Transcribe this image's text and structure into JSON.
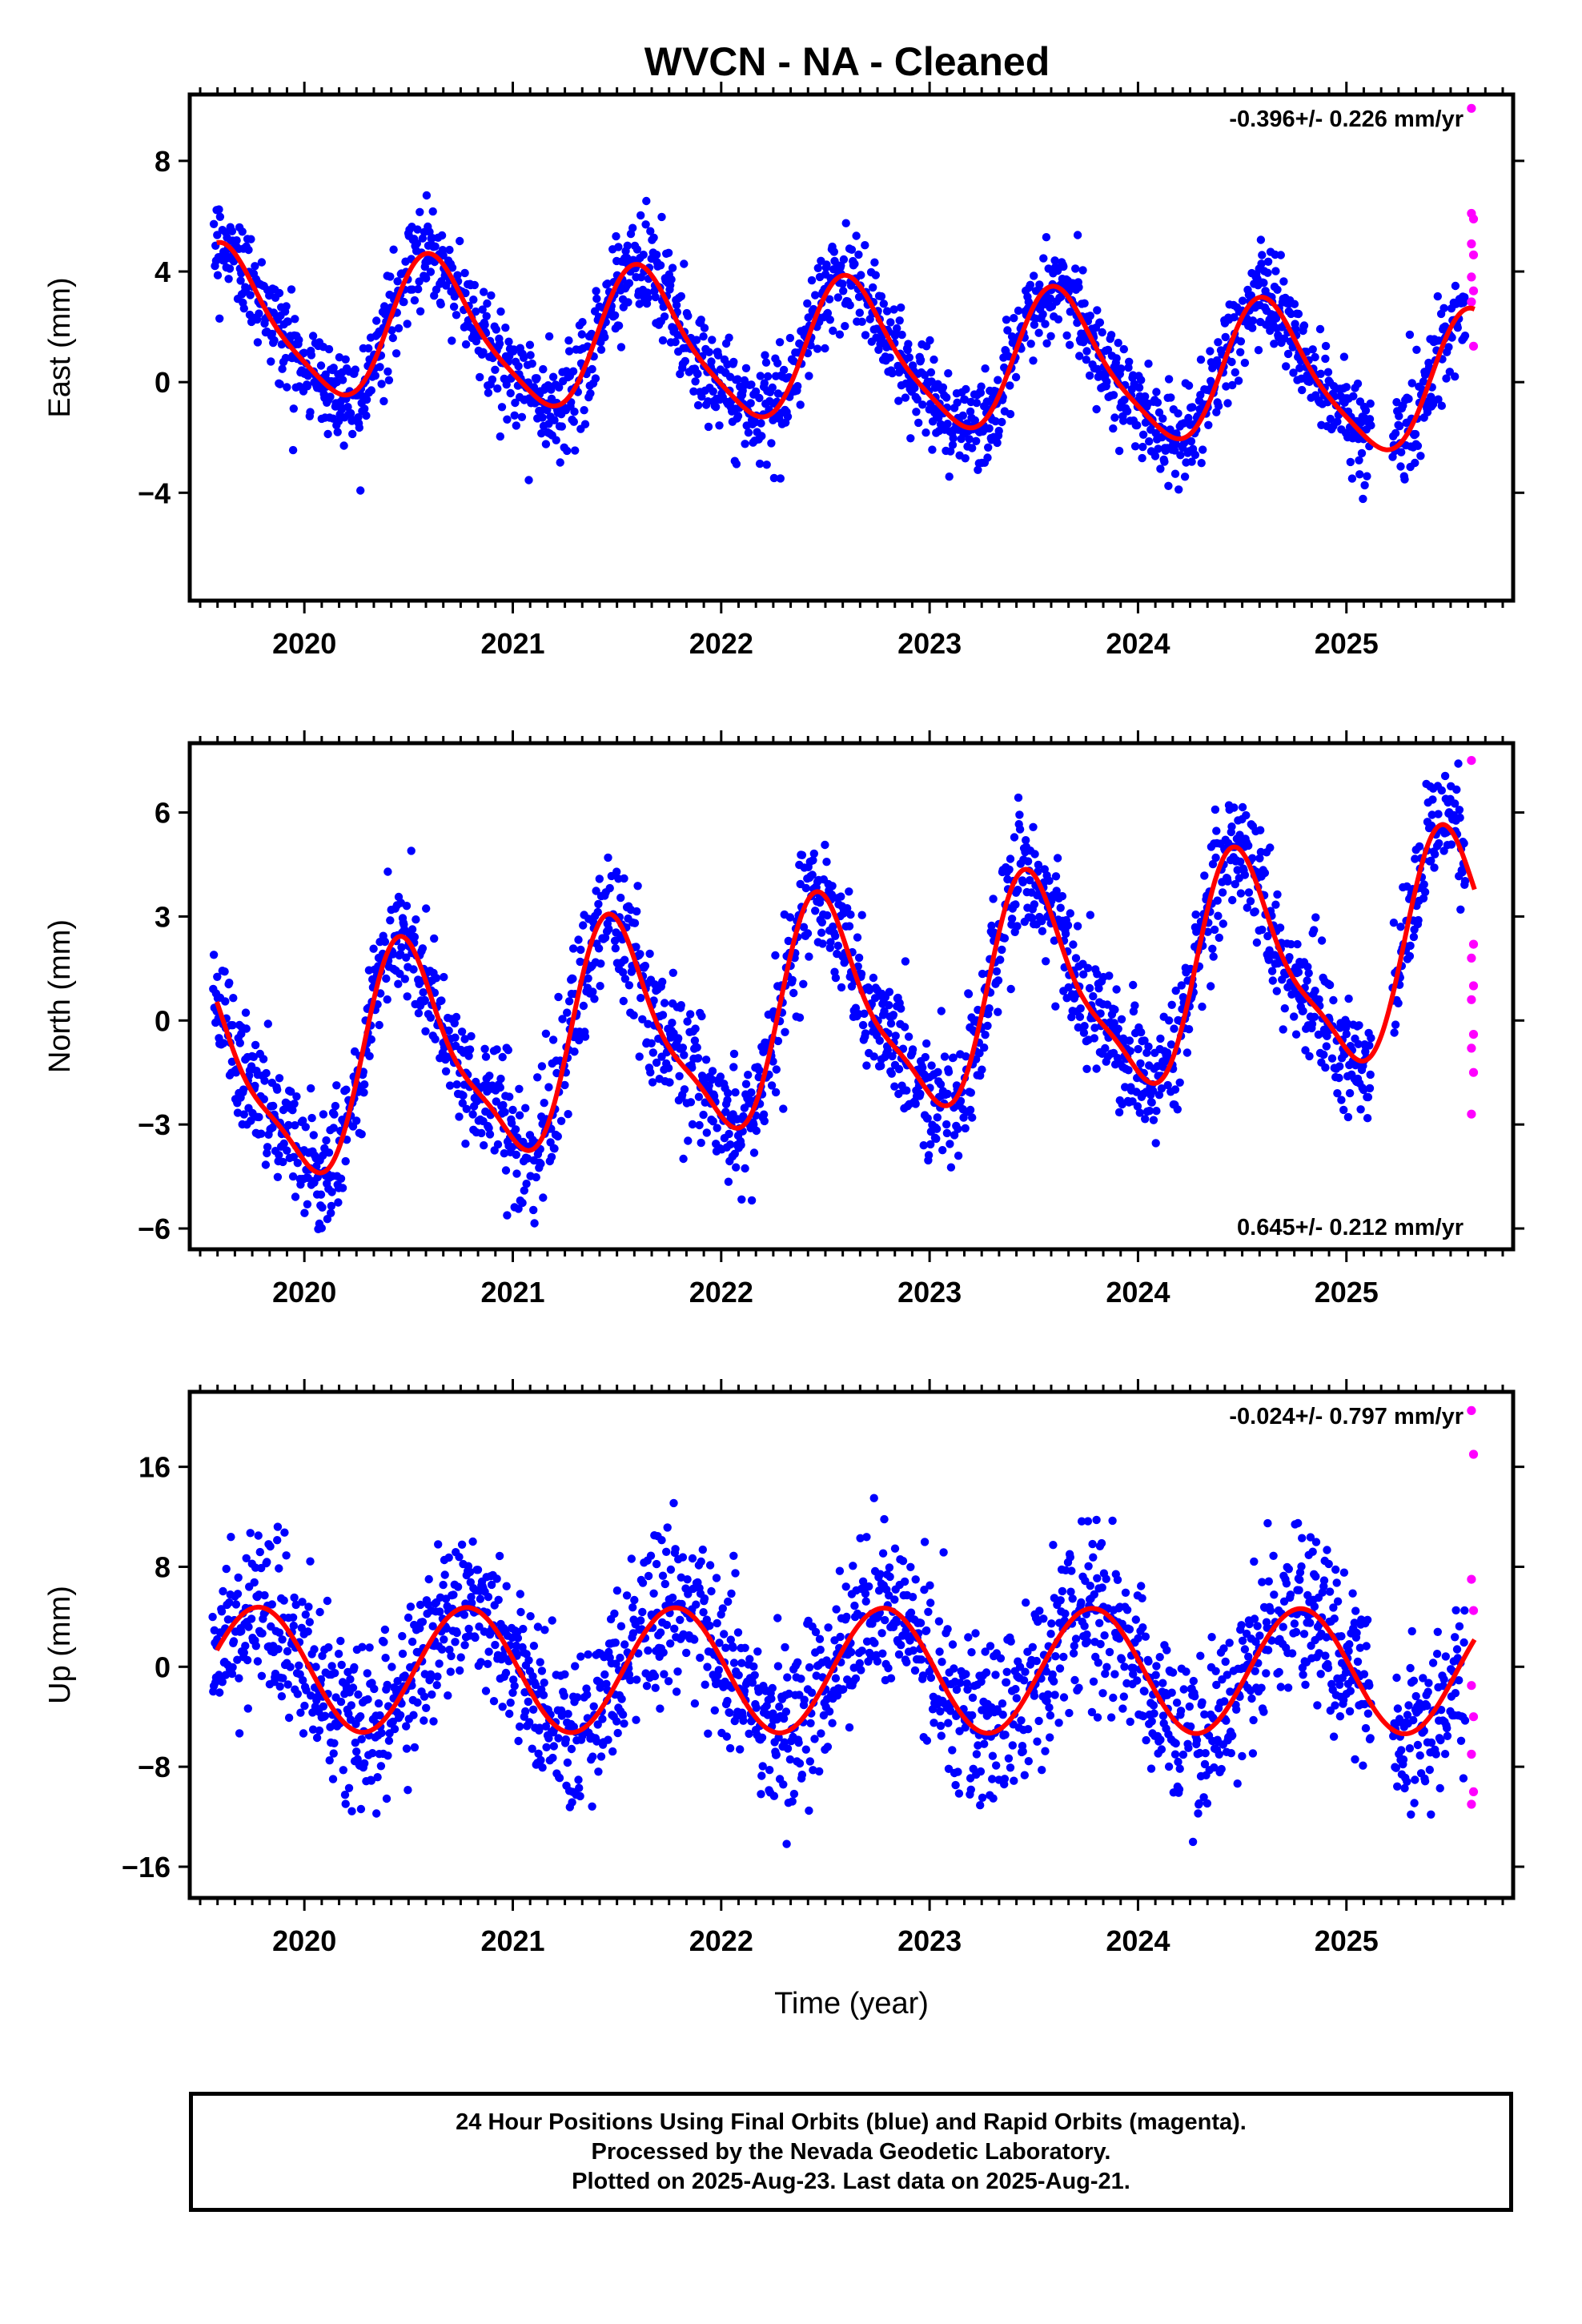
{
  "title": "WVCN  - NA - Cleaned",
  "colors": {
    "final_orbits": "#0000ff",
    "rapid_orbits": "#ff00ff",
    "model_fit": "#ff0000",
    "frame": "#000000"
  },
  "caption": {
    "line1": "24 Hour Positions Using Final Orbits (blue) and Rapid Orbits (magenta).",
    "line2": "Processed by the Nevada Geodetic Laboratory.",
    "line3": "Plotted on 2025-Aug-23. Last data on 2025-Aug-21."
  },
  "chart_data": [
    {
      "type": "scatter",
      "component": "east",
      "ylabel": "East (mm)",
      "xlabel": "",
      "xlim": [
        2019.45,
        2025.8
      ],
      "ylim": [
        -7.9,
        10.4
      ],
      "yticks": [
        -4,
        0,
        4,
        8
      ],
      "xticks": [
        2020,
        2021,
        2022,
        2023,
        2024,
        2025
      ],
      "rate_label": "-0.396+/- 0.226 mm/yr",
      "rate_label_position": "top-right",
      "grid": false,
      "fit": {
        "amplitude": 2.5,
        "peak_phase": 0.63,
        "offset": 1.0,
        "rate": -0.396,
        "ref_year": 2022.6,
        "wiggle_amplitude": 0.5
      },
      "scatter_sigma": 0.9,
      "rapid_points": [
        [
          2025.6,
          9.9
        ],
        [
          2025.6,
          6.1
        ],
        [
          2025.61,
          5.9
        ],
        [
          2025.6,
          5.0
        ],
        [
          2025.61,
          4.6
        ],
        [
          2025.6,
          3.8
        ],
        [
          2025.61,
          3.3
        ],
        [
          2025.6,
          2.9
        ],
        [
          2025.61,
          1.3
        ]
      ],
      "gaps": [
        [
          2025.12,
          2025.22
        ]
      ]
    },
    {
      "type": "scatter",
      "component": "north",
      "ylabel": "North (mm)",
      "xlabel": "",
      "xlim": [
        2019.45,
        2025.8
      ],
      "ylim": [
        -6.6,
        8.0
      ],
      "yticks": [
        -6,
        -3,
        0,
        3,
        6
      ],
      "xticks": [
        2020,
        2021,
        2022,
        2023,
        2024,
        2025
      ],
      "rate_label": "0.645+/- 0.212 mm/yr",
      "rate_label_position": "bottom-right",
      "grid": false,
      "fit": {
        "amplitude": 3.0,
        "peak_phase": 0.5,
        "offset": 0.2,
        "rate": 0.645,
        "ref_year": 2022.6,
        "wiggle_amplitude": 0.8
      },
      "scatter_sigma": 0.9,
      "rapid_points": [
        [
          2025.6,
          7.5
        ],
        [
          2025.61,
          2.2
        ],
        [
          2025.6,
          1.8
        ],
        [
          2025.61,
          1.0
        ],
        [
          2025.6,
          0.6
        ],
        [
          2025.61,
          -0.4
        ],
        [
          2025.6,
          -0.8
        ],
        [
          2025.61,
          -1.5
        ],
        [
          2025.6,
          -2.7
        ]
      ],
      "gaps": [
        [
          2025.12,
          2025.22
        ]
      ]
    },
    {
      "type": "scatter",
      "component": "up",
      "ylabel": "Up (mm)",
      "xlabel": "Time (year)",
      "xlim": [
        2019.45,
        2025.8
      ],
      "ylim": [
        -18.5,
        22.0
      ],
      "yticks": [
        -16,
        -8,
        0,
        8,
        16
      ],
      "xticks": [
        2020,
        2021,
        2022,
        2023,
        2024,
        2025
      ],
      "rate_label": "-0.024+/- 0.797 mm/yr",
      "rate_label_position": "top-right",
      "grid": false,
      "fit": {
        "amplitude": 5.0,
        "peak_phase": 0.78,
        "offset": -0.3,
        "rate": -0.024,
        "ref_year": 2022.6,
        "wiggle_amplitude": 0.0
      },
      "scatter_sigma": 3.3,
      "rapid_points": [
        [
          2025.6,
          20.5
        ],
        [
          2025.61,
          17.0
        ],
        [
          2025.6,
          7.0
        ],
        [
          2025.61,
          4.5
        ],
        [
          2025.6,
          -1.5
        ],
        [
          2025.61,
          -4.0
        ],
        [
          2025.6,
          -7.0
        ],
        [
          2025.61,
          -10.0
        ],
        [
          2025.6,
          -11.0
        ]
      ],
      "gaps": [
        [
          2025.12,
          2025.22
        ]
      ]
    }
  ]
}
